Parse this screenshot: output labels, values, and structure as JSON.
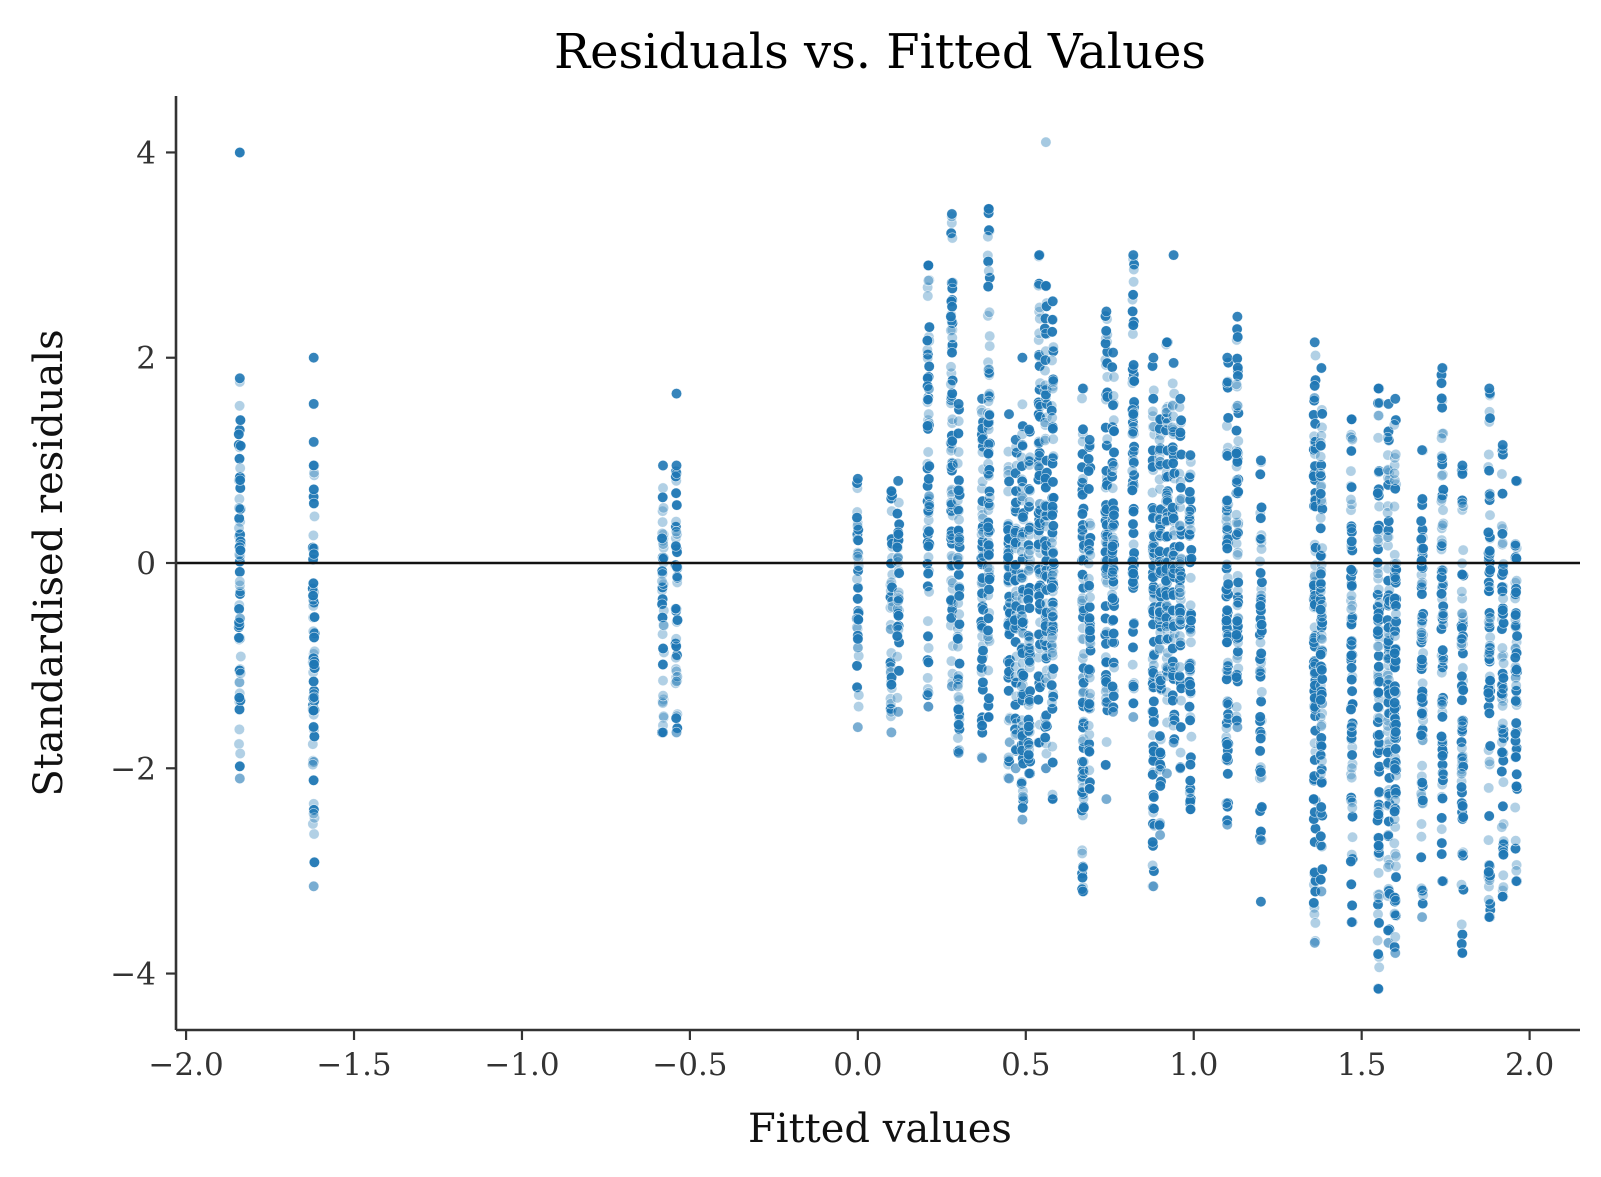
{
  "chart_data": {
    "type": "scatter",
    "title": "Residuals vs. Fitted Values",
    "xlabel": "Fitted values",
    "ylabel": "Standardised residuals",
    "xlim": [
      -2.03,
      2.15
    ],
    "ylim": [
      -4.55,
      4.55
    ],
    "xticks": [
      -2.0,
      -1.5,
      -1.0,
      -0.5,
      0.0,
      0.5,
      1.0,
      1.5,
      2.0
    ],
    "xtick_labels": [
      "−2.0",
      "−1.5",
      "−1.0",
      "−0.5",
      "0.0",
      "0.5",
      "1.0",
      "1.5",
      "2.0"
    ],
    "yticks": [
      -4,
      -2,
      0,
      2,
      4
    ],
    "ytick_labels": [
      "−4",
      "−2",
      "0",
      "2",
      "4"
    ],
    "reference_line_y": 0,
    "grid": false,
    "colors": {
      "point": "#1f77b4",
      "zero_line": "#111111"
    },
    "fitted_groups": [
      {
        "x": -1.84,
        "ymin": -2.1,
        "ymax": 1.8,
        "outliers": [
          4.0
        ]
      },
      {
        "x": -1.62,
        "ymin": -3.15,
        "ymax": 0.95,
        "outliers": [
          2.0,
          1.55,
          1.18
        ]
      },
      {
        "x": -0.58,
        "ymin": -1.65,
        "ymax": 0.95,
        "outliers": []
      },
      {
        "x": -0.54,
        "ymin": -1.65,
        "ymax": 0.95,
        "outliers": [
          1.65
        ]
      },
      {
        "x": 0.0,
        "ymin": -1.6,
        "ymax": 0.82,
        "outliers": []
      },
      {
        "x": 0.1,
        "ymin": -1.65,
        "ymax": 0.7,
        "outliers": []
      },
      {
        "x": 0.12,
        "ymin": -1.45,
        "ymax": 0.8,
        "outliers": []
      },
      {
        "x": 0.21,
        "ymin": -1.4,
        "ymax": 2.9,
        "outliers": []
      },
      {
        "x": 0.28,
        "ymin": -1.2,
        "ymax": 3.4,
        "outliers": []
      },
      {
        "x": 0.3,
        "ymin": -1.85,
        "ymax": 1.55,
        "outliers": []
      },
      {
        "x": 0.37,
        "ymin": -1.9,
        "ymax": 1.6,
        "outliers": []
      },
      {
        "x": 0.39,
        "ymin": -1.5,
        "ymax": 3.45,
        "outliers": []
      },
      {
        "x": 0.45,
        "ymin": -2.1,
        "ymax": 1.45,
        "outliers": []
      },
      {
        "x": 0.47,
        "ymin": -2.0,
        "ymax": 1.2,
        "outliers": []
      },
      {
        "x": 0.49,
        "ymin": -2.5,
        "ymax": 2.0,
        "outliers": []
      },
      {
        "x": 0.51,
        "ymin": -2.05,
        "ymax": 1.3,
        "outliers": []
      },
      {
        "x": 0.54,
        "ymin": -1.75,
        "ymax": 3.0,
        "outliers": []
      },
      {
        "x": 0.56,
        "ymin": -2.0,
        "ymax": 2.7,
        "outliers": [
          4.1
        ]
      },
      {
        "x": 0.58,
        "ymin": -2.3,
        "ymax": 2.55,
        "outliers": []
      },
      {
        "x": 0.67,
        "ymin": -3.2,
        "ymax": 1.7,
        "outliers": []
      },
      {
        "x": 0.69,
        "ymin": -2.2,
        "ymax": 1.2,
        "outliers": []
      },
      {
        "x": 0.74,
        "ymin": -2.3,
        "ymax": 2.45,
        "outliers": []
      },
      {
        "x": 0.76,
        "ymin": -1.45,
        "ymax": 2.05,
        "outliers": []
      },
      {
        "x": 0.82,
        "ymin": -1.5,
        "ymax": 3.0,
        "outliers": []
      },
      {
        "x": 0.88,
        "ymin": -3.15,
        "ymax": 2.0,
        "outliers": []
      },
      {
        "x": 0.9,
        "ymin": -2.65,
        "ymax": 1.4,
        "outliers": []
      },
      {
        "x": 0.92,
        "ymin": -2.05,
        "ymax": 2.15,
        "outliers": []
      },
      {
        "x": 0.94,
        "ymin": -1.75,
        "ymax": 1.95,
        "outliers": [
          3.0
        ]
      },
      {
        "x": 0.96,
        "ymin": -2.0,
        "ymax": 1.6,
        "outliers": []
      },
      {
        "x": 0.99,
        "ymin": -2.4,
        "ymax": 1.05,
        "outliers": []
      },
      {
        "x": 1.1,
        "ymin": -2.55,
        "ymax": 2.0,
        "outliers": []
      },
      {
        "x": 1.13,
        "ymin": -1.6,
        "ymax": 2.4,
        "outliers": []
      },
      {
        "x": 1.2,
        "ymin": -2.7,
        "ymax": 1.0,
        "outliers": [
          -3.3
        ]
      },
      {
        "x": 1.36,
        "ymin": -3.7,
        "ymax": 2.15,
        "outliers": []
      },
      {
        "x": 1.38,
        "ymin": -3.2,
        "ymax": 1.9,
        "outliers": []
      },
      {
        "x": 1.47,
        "ymin": -3.5,
        "ymax": 1.4,
        "outliers": []
      },
      {
        "x": 1.55,
        "ymin": -4.15,
        "ymax": 1.7,
        "outliers": []
      },
      {
        "x": 1.58,
        "ymin": -3.7,
        "ymax": 1.55,
        "outliers": []
      },
      {
        "x": 1.6,
        "ymin": -3.8,
        "ymax": 1.6,
        "outliers": []
      },
      {
        "x": 1.68,
        "ymin": -3.45,
        "ymax": 1.1,
        "outliers": []
      },
      {
        "x": 1.74,
        "ymin": -3.1,
        "ymax": 1.9,
        "outliers": []
      },
      {
        "x": 1.8,
        "ymin": -3.8,
        "ymax": 0.95,
        "outliers": []
      },
      {
        "x": 1.88,
        "ymin": -3.45,
        "ymax": 1.7,
        "outliers": []
      },
      {
        "x": 1.92,
        "ymin": -3.25,
        "ymax": 1.15,
        "outliers": []
      },
      {
        "x": 1.96,
        "ymin": -3.1,
        "ymax": 0.8,
        "outliers": []
      }
    ]
  }
}
